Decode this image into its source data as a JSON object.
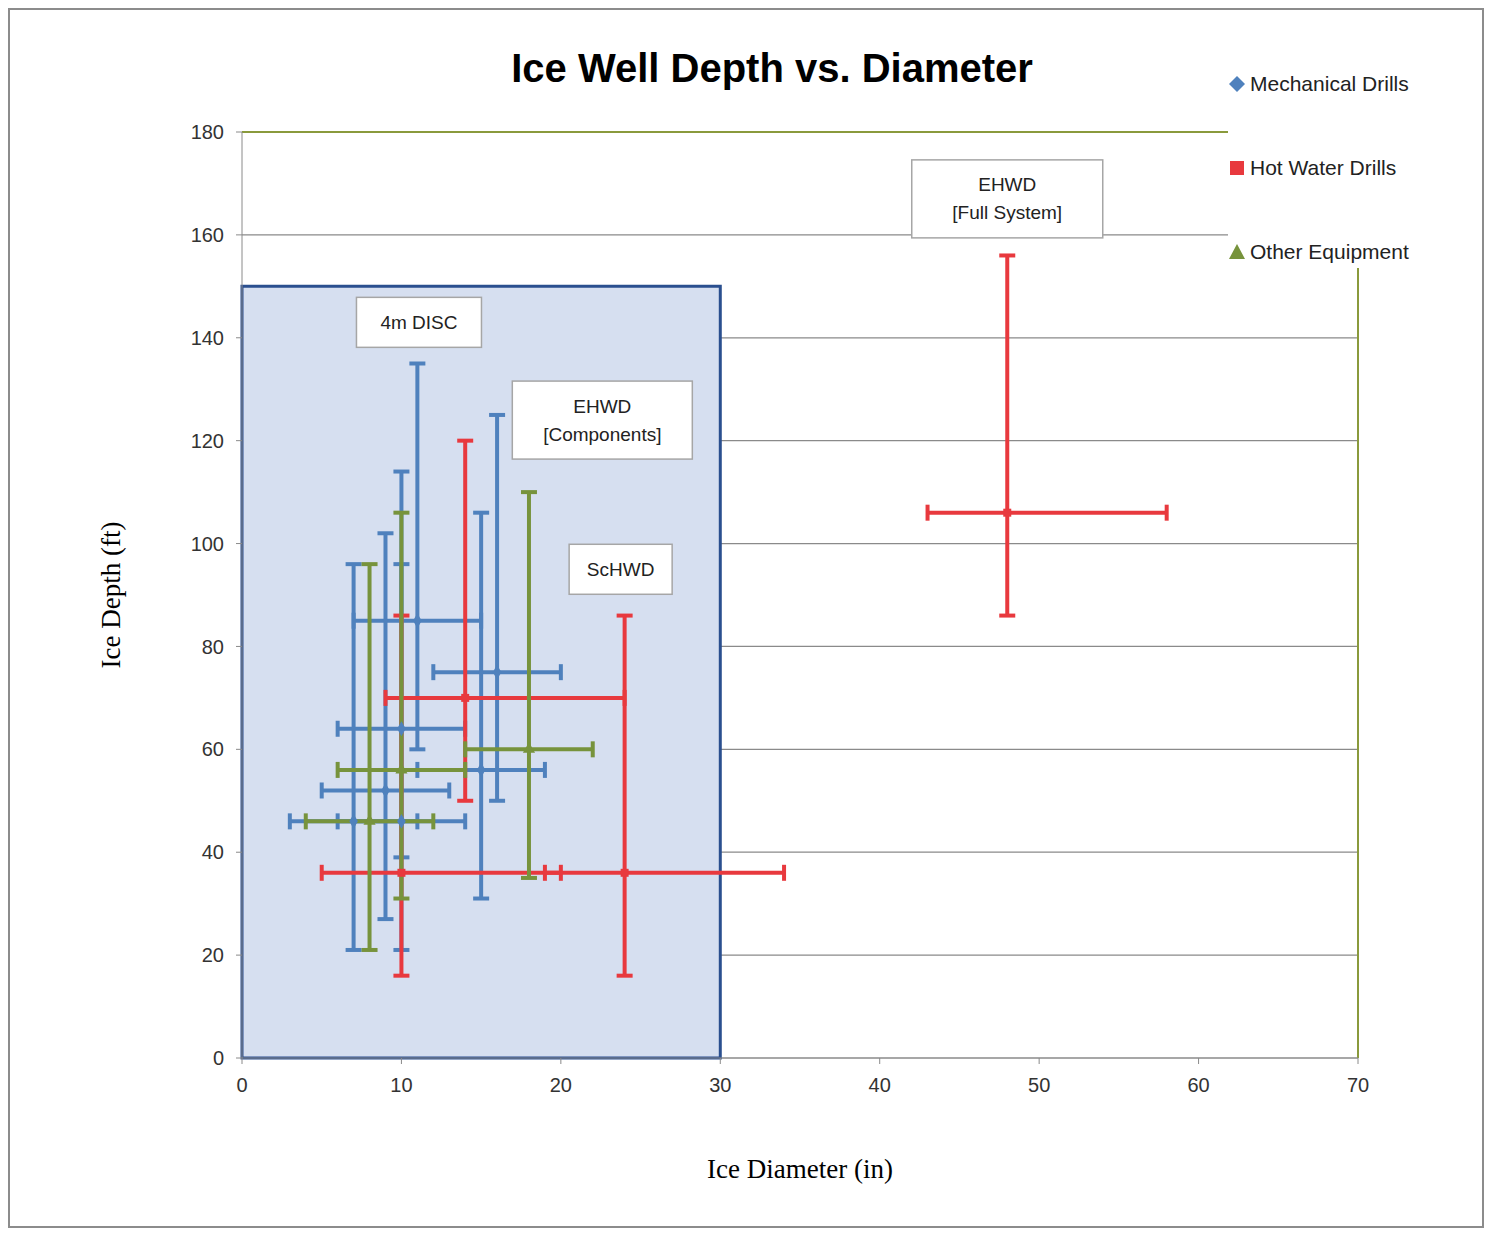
{
  "chart_data": {
    "type": "scatter",
    "title": "Ice Well Depth vs. Diameter",
    "x_label": "Ice Diameter (in)",
    "y_label": "Ice Depth (ft)",
    "xlim": [
      0,
      70
    ],
    "ylim": [
      0,
      180
    ],
    "xticks": [
      0,
      10,
      20,
      30,
      40,
      50,
      60,
      70
    ],
    "yticks": [
      0,
      20,
      40,
      60,
      80,
      100,
      120,
      140,
      160,
      180
    ],
    "grid": true,
    "legend": "right",
    "highlight": {
      "x": [
        0,
        30
      ],
      "y": [
        0,
        150
      ],
      "color": "#d6dff0"
    },
    "series": [
      {
        "name": "Mechanical Drills",
        "color": "#4f81bd",
        "marker": "diamond",
        "x": [
          11,
          16,
          10,
          10,
          7,
          9,
          15
        ],
        "y": [
          85,
          75,
          64,
          46,
          46,
          52,
          56
        ],
        "x_error": [
          [
            4,
            4
          ],
          [
            4,
            4
          ],
          [
            4,
            4
          ],
          [
            4,
            4
          ],
          [
            4,
            4
          ],
          [
            4,
            4
          ],
          [
            4,
            4
          ]
        ],
        "y_error": [
          [
            25,
            50
          ],
          [
            25,
            50
          ],
          [
            25,
            50
          ],
          [
            25,
            50
          ],
          [
            25,
            50
          ],
          [
            25,
            50
          ],
          [
            25,
            50
          ]
        ]
      },
      {
        "name": "Hot Water Drills",
        "color": "#e8393e",
        "marker": "square",
        "x": [
          14,
          10,
          24,
          48
        ],
        "y": [
          70,
          36,
          36,
          106
        ],
        "x_error": [
          [
            5,
            10
          ],
          [
            5,
            10
          ],
          [
            5,
            10
          ],
          [
            5,
            10
          ]
        ],
        "y_error": [
          [
            20,
            50
          ],
          [
            20,
            50
          ],
          [
            20,
            50
          ],
          [
            20,
            50
          ]
        ]
      },
      {
        "name": "Other Equipment",
        "color": "#77933c",
        "marker": "triangle",
        "x": [
          8,
          10,
          18
        ],
        "y": [
          46,
          56,
          60
        ],
        "x_error": [
          [
            4,
            4
          ],
          [
            4,
            4
          ],
          [
            4,
            4
          ]
        ],
        "y_error": [
          [
            25,
            50
          ],
          [
            25,
            50
          ],
          [
            25,
            50
          ]
        ]
      }
    ],
    "annotations": [
      {
        "lines": [
          "4m DISC"
        ],
        "x": 11.1,
        "y": 143
      },
      {
        "lines": [
          "EHWD",
          "[Components]"
        ],
        "x": 22.6,
        "y": 124
      },
      {
        "lines": [
          "ScHWD"
        ],
        "x": 23.75,
        "y": 95
      },
      {
        "lines": [
          "EHWD",
          "[Full System]"
        ],
        "x": 48,
        "y": 167
      }
    ]
  }
}
